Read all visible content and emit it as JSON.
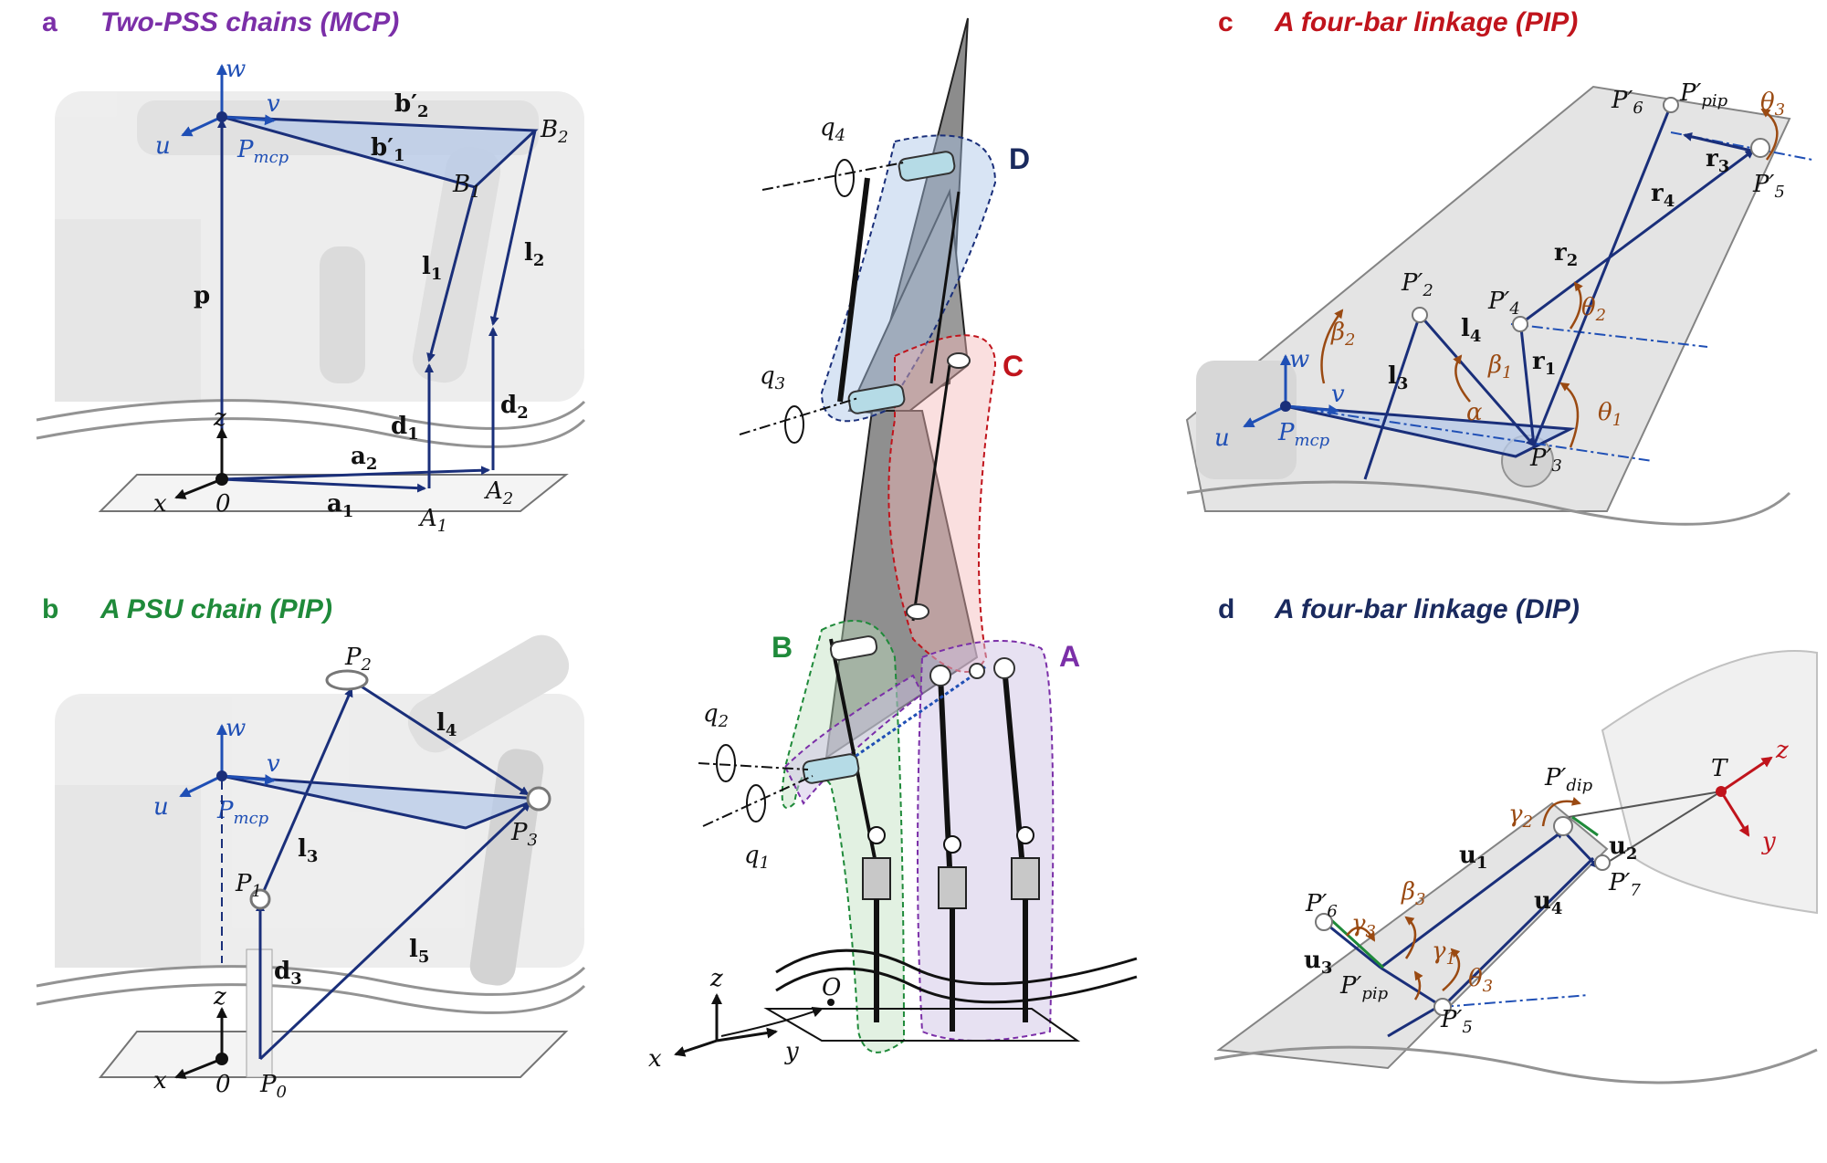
{
  "colors": {
    "navy": "#1a2f7a",
    "blue": "#1f4fb5",
    "purple": "#7b2fa8",
    "green": "#1f8a3a",
    "red": "#c0141c",
    "darknavy": "#1a2a5e",
    "brown": "#9a4a12",
    "grey_fill": "#d9d9d9"
  },
  "panels": {
    "a": {
      "letter": "a",
      "title": "Two-PSS chains (MCP)"
    },
    "b": {
      "letter": "b",
      "title": "A PSU chain (PIP)"
    },
    "c": {
      "letter": "c",
      "title": "A four-bar linkage (PIP)"
    },
    "d": {
      "letter": "d",
      "title": "A four-bar linkage (DIP)"
    }
  },
  "panel_a": {
    "w": "w",
    "v": "v",
    "u": "u",
    "pmcp": "P",
    "pmcp_sub": "mcp",
    "b2": "b′",
    "b2_sub": "2",
    "b1": "b′",
    "b1_sub": "1",
    "B2": "B",
    "B2_sub": "2",
    "B1": "B",
    "B1_sub": "1",
    "l1": "l",
    "l1_sub": "1",
    "l2": "l",
    "l2_sub": "2",
    "p": "p",
    "d1": "d",
    "d1_sub": "1",
    "d2": "d",
    "d2_sub": "2",
    "a1": "a",
    "a1_sub": "1",
    "a2": "a",
    "a2_sub": "2",
    "A1": "A",
    "A1_sub": "1",
    "A2": "A",
    "A2_sub": "2",
    "z": "z",
    "x": "x",
    "origin": "0"
  },
  "panel_b": {
    "w": "w",
    "v": "v",
    "u": "u",
    "pmcp": "P",
    "pmcp_sub": "mcp",
    "P2": "P",
    "P2_sub": "2",
    "P3": "P",
    "P3_sub": "3",
    "P1": "P",
    "P1_sub": "1",
    "P0": "P",
    "P0_sub": "0",
    "l3": "l",
    "l3_sub": "3",
    "l4": "l",
    "l4_sub": "4",
    "l5": "l",
    "l5_sub": "5",
    "d3": "d",
    "d3_sub": "3",
    "z": "z",
    "x": "x",
    "origin": "0"
  },
  "center": {
    "q1": "q",
    "q1_sub": "1",
    "q2": "q",
    "q2_sub": "2",
    "q3": "q",
    "q3_sub": "3",
    "q4": "q",
    "q4_sub": "4",
    "A": "A",
    "B": "B",
    "C": "C",
    "D": "D",
    "z": "z",
    "x": "x",
    "y": "y",
    "O": "O"
  },
  "panel_c": {
    "P6": "P′",
    "P6_sub": "6",
    "Ppip": "P′",
    "Ppip_sub": "pip",
    "theta3": "θ",
    "theta3_sub": "3",
    "r3": "r",
    "r3_sub": "3",
    "P5": "P′",
    "P5_sub": "5",
    "r4": "r",
    "r4_sub": "4",
    "r2": "r",
    "r2_sub": "2",
    "P2": "P′",
    "P2_sub": "2",
    "P4": "P′",
    "P4_sub": "4",
    "theta2": "θ",
    "theta2_sub": "2",
    "beta2": "β",
    "beta2_sub": "2",
    "l4": "l",
    "l4_sub": "4",
    "beta1": "β",
    "beta1_sub": "1",
    "r1": "r",
    "r1_sub": "1",
    "w": "w",
    "l3": "l",
    "l3_sub": "3",
    "v": "v",
    "alpha": "α",
    "theta1": "θ",
    "theta1_sub": "1",
    "u": "u",
    "pmcp": "P",
    "pmcp_sub": "mcp",
    "P3": "P′",
    "P3_sub": "3"
  },
  "panel_d": {
    "Pdip": "P′",
    "Pdip_sub": "dip",
    "T": "T",
    "z": "z",
    "y": "y",
    "gamma2": "γ",
    "gamma2_sub": "2",
    "u1": "u",
    "u1_sub": "1",
    "u2": "u",
    "u2_sub": "2",
    "P7": "P′",
    "P7_sub": "7",
    "beta3": "β",
    "beta3_sub": "3",
    "u4": "u",
    "u4_sub": "4",
    "P6": "P′",
    "P6_sub": "6",
    "gamma3": "γ",
    "gamma3_sub": "3",
    "gamma1": "γ",
    "gamma1_sub": "1",
    "u3": "u",
    "u3_sub": "3",
    "Ppip": "P′",
    "Ppip_sub": "pip",
    "theta3": "θ",
    "theta3_sub": "3",
    "P5": "P′",
    "P5_sub": "5"
  }
}
